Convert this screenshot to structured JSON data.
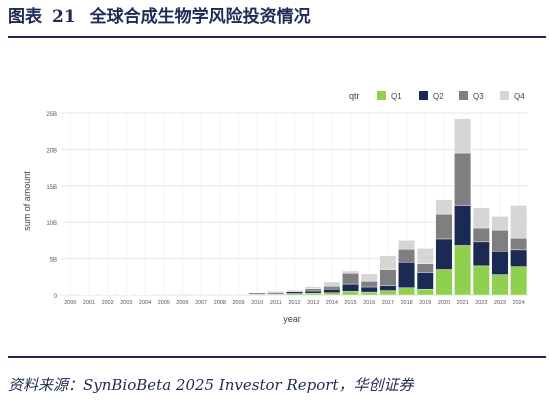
{
  "figure": {
    "label": "图表",
    "number": "21",
    "title": "全球合成生物学风险投资情况",
    "source": "资料来源：SynBioBeta 2025 Investor Report，华创证券"
  },
  "colors": {
    "Q1": "#8fd14f",
    "Q2": "#1b2a52",
    "Q3": "#7f7f7f",
    "Q4": "#d6d6d6",
    "rule": "#1f2a56",
    "grid": "#e6e6e6"
  },
  "chart_data": {
    "type": "bar",
    "stacked": true,
    "xlabel": "year",
    "ylabel": "sum of amount",
    "legend_title": "qtr",
    "legend_position": "top-right",
    "grid": true,
    "ylim": [
      0,
      25
    ],
    "yticks": [
      0,
      5,
      10,
      15,
      20,
      25
    ],
    "ytick_labels": [
      "0",
      "5B",
      "10B",
      "15B",
      "20B",
      "25B"
    ],
    "categories": [
      "2000",
      "2001",
      "2002",
      "2003",
      "2004",
      "2005",
      "2006",
      "2007",
      "2008",
      "2009",
      "2010",
      "2011",
      "2012",
      "2013",
      "2014",
      "2015",
      "2016",
      "2017",
      "2018",
      "2019",
      "2020",
      "2021",
      "2022",
      "2023",
      "2024"
    ],
    "series": [
      {
        "name": "Q1",
        "values": [
          0.03,
          0.02,
          0.02,
          0.02,
          0.02,
          0.03,
          0.05,
          0.03,
          0.03,
          0.03,
          0.1,
          0.1,
          0.2,
          0.25,
          0.3,
          0.5,
          0.4,
          0.6,
          1.0,
          0.8,
          3.5,
          6.8,
          4.0,
          2.8,
          3.9
        ]
      },
      {
        "name": "Q2",
        "values": [
          0.03,
          0.02,
          0.02,
          0.02,
          0.02,
          0.03,
          0.05,
          0.03,
          0.03,
          0.03,
          0.15,
          0.15,
          0.25,
          0.3,
          0.5,
          1.0,
          0.7,
          0.7,
          3.5,
          2.3,
          4.2,
          5.5,
          3.3,
          3.2,
          2.3
        ]
      },
      {
        "name": "Q3",
        "values": [
          0.02,
          0.01,
          0.01,
          0.01,
          0.01,
          0.02,
          0.05,
          0.02,
          0.02,
          0.02,
          0.05,
          0.1,
          0.1,
          0.3,
          0.4,
          1.5,
          0.8,
          2.2,
          1.8,
          1.2,
          3.4,
          7.2,
          1.9,
          2.9,
          1.6
        ]
      },
      {
        "name": "Q4",
        "values": [
          0.02,
          0.01,
          0.01,
          0.01,
          0.01,
          0.02,
          0.05,
          0.02,
          0.02,
          0.02,
          0.05,
          0.15,
          0.15,
          0.3,
          0.6,
          0.3,
          1.0,
          1.9,
          1.2,
          2.1,
          2.0,
          4.7,
          2.8,
          1.9,
          4.5
        ]
      }
    ]
  }
}
